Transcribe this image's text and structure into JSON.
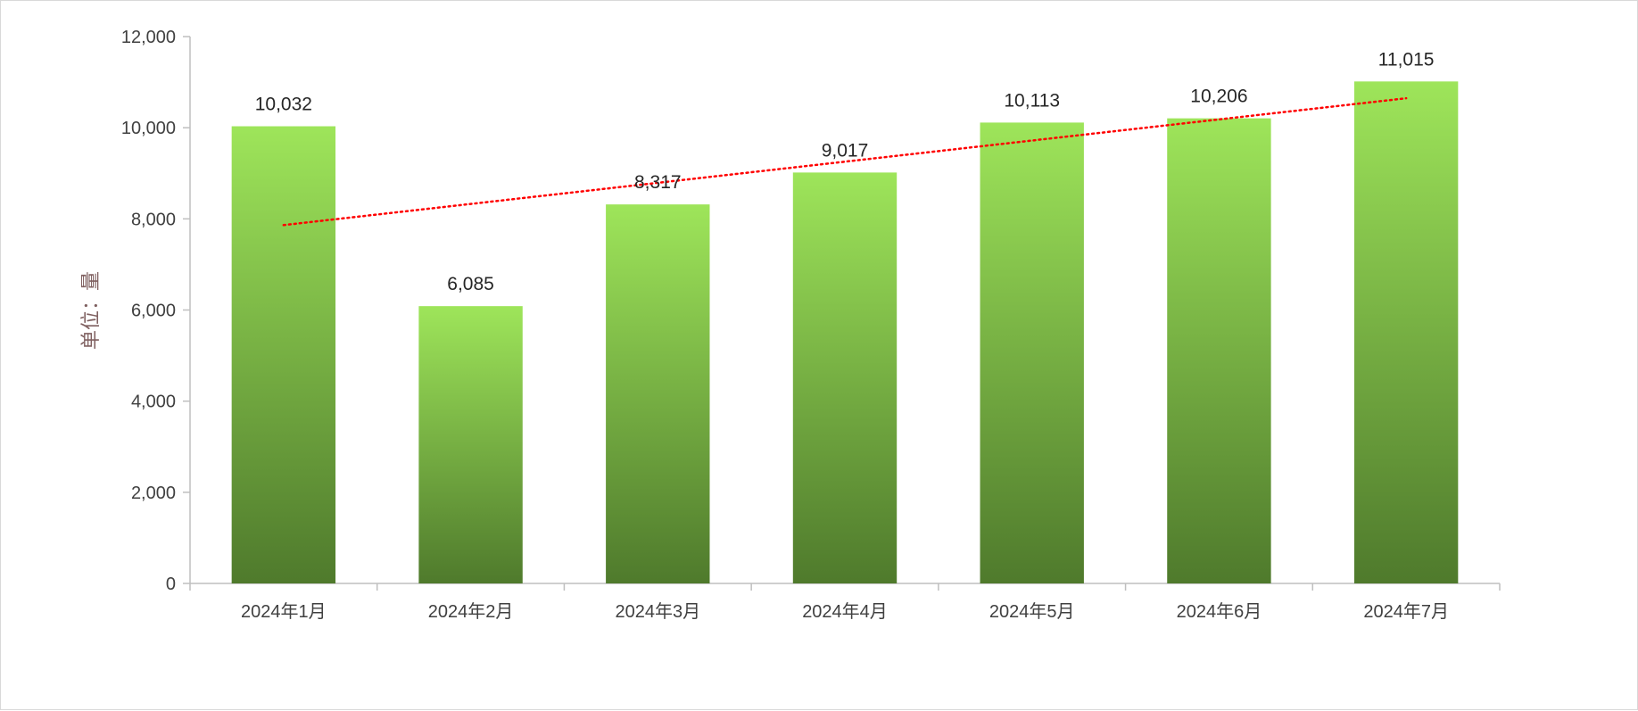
{
  "chart_data": {
    "type": "bar",
    "title": "",
    "xlabel": "",
    "ylabel": "单位：量",
    "categories": [
      "2024年1月",
      "2024年2月",
      "2024年3月",
      "2024年4月",
      "2024年5月",
      "2024年6月",
      "2024年7月"
    ],
    "series": [
      {
        "name": "量",
        "values": [
          10032,
          6085,
          8317,
          9017,
          10113,
          10206,
          11015
        ]
      }
    ],
    "data_labels": [
      "10,032",
      "6,085",
      "8,317",
      "9,017",
      "10,113",
      "10,206",
      "11,015"
    ],
    "ylim": [
      0,
      12000
    ],
    "yticks": [
      0,
      2000,
      4000,
      6000,
      8000,
      10000,
      12000
    ],
    "ytick_labels": [
      "0",
      "2,000",
      "4,000",
      "6,000",
      "8,000",
      "10,000",
      "12,000"
    ],
    "trendline": {
      "type": "linear",
      "style": "dotted",
      "color": "#ff0000"
    },
    "grid": false,
    "legend": "none",
    "colors": {
      "bar_top": "#9ee55a",
      "bar_bottom": "#4f7a2c",
      "axis": "#bfbfbf"
    }
  }
}
